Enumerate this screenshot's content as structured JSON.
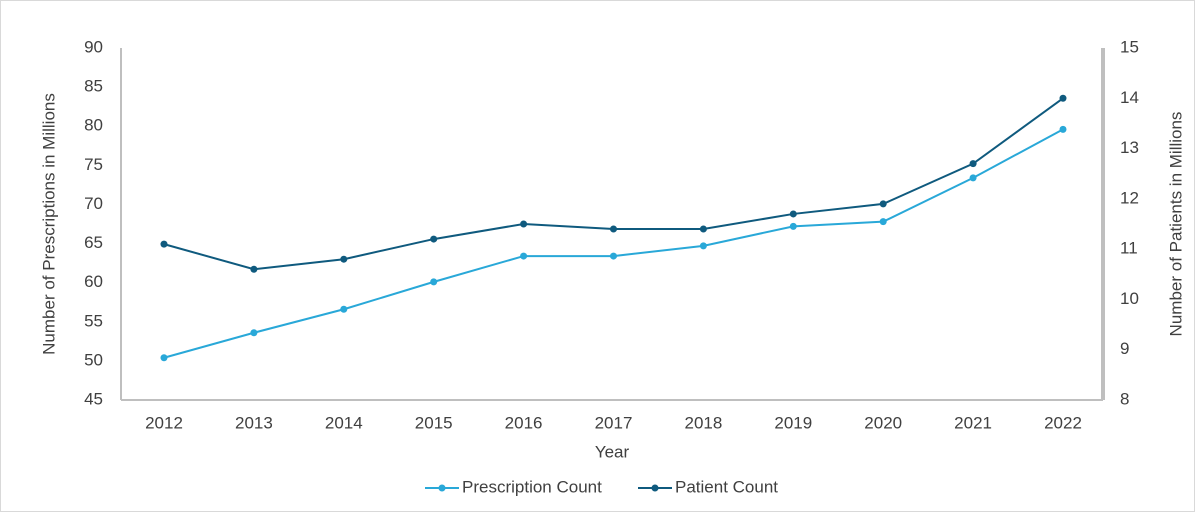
{
  "chart_data": {
    "type": "line",
    "x_label": "Year",
    "y_label": "Number  of Prescriptions in Millions",
    "y2_label": "Number of Patients in Millions",
    "categories": [
      "2012",
      "2013",
      "2014",
      "2015",
      "2016",
      "2017",
      "2018",
      "2019",
      "2020",
      "2021",
      "2022"
    ],
    "series": [
      {
        "name": "Prescription Count",
        "color": "#29a8d8",
        "values": [
          50.4,
          53.6,
          56.6,
          60.1,
          63.4,
          63.4,
          64.7,
          67.2,
          67.8,
          73.4,
          79.6
        ]
      },
      {
        "name": "Patient Count",
        "color": "#0f5a7e",
        "axis": "y2",
        "values": [
          11.1,
          10.6,
          10.8,
          11.2,
          11.5,
          11.4,
          11.4,
          11.7,
          11.9,
          12.7,
          14.0
        ]
      }
    ],
    "ylim": [
      45,
      90
    ],
    "yticks": [
      45,
      50,
      55,
      60,
      65,
      70,
      75,
      80,
      85,
      90
    ],
    "y2lim": [
      8,
      15
    ],
    "y2ticks": [
      8,
      9,
      10,
      11,
      12,
      13,
      14,
      15
    ],
    "grid": false,
    "legend": "bottom"
  }
}
